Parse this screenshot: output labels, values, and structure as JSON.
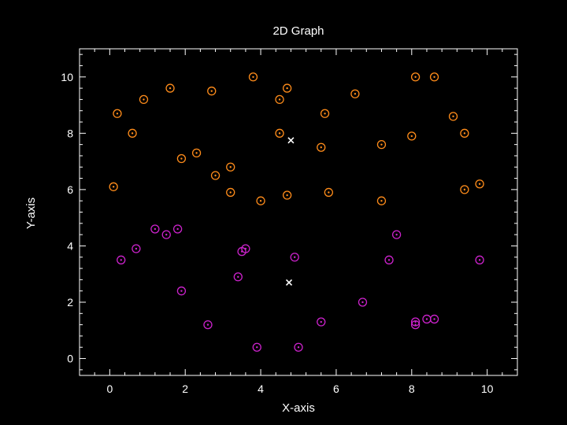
{
  "chart_data": {
    "type": "scatter",
    "title": "2D Graph",
    "xlabel": "X-axis",
    "ylabel": "Y-axis",
    "xlim": [
      -0.8,
      10.8
    ],
    "ylim": [
      -0.6,
      11.0
    ],
    "x_ticks": [
      0,
      2,
      4,
      6,
      8,
      10
    ],
    "y_ticks": [
      0,
      2,
      4,
      6,
      8,
      10
    ],
    "x_tick_labels": [
      "0",
      "2",
      "4",
      "6",
      "8",
      "10"
    ],
    "y_tick_labels": [
      "0",
      "2",
      "4",
      "6",
      "8",
      "10"
    ],
    "grid": false,
    "background": "#000000",
    "series": [
      {
        "color": "#ff8c1a",
        "marker": "circle-dot",
        "points": [
          [
            0.1,
            6.1
          ],
          [
            0.2,
            8.7
          ],
          [
            0.6,
            8.0
          ],
          [
            0.9,
            9.2
          ],
          [
            1.6,
            9.6
          ],
          [
            1.9,
            7.1
          ],
          [
            2.3,
            7.3
          ],
          [
            2.7,
            9.5
          ],
          [
            2.8,
            6.5
          ],
          [
            3.2,
            6.8
          ],
          [
            3.2,
            5.9
          ],
          [
            3.8,
            10.0
          ],
          [
            4.0,
            5.6
          ],
          [
            4.5,
            9.2
          ],
          [
            4.5,
            8.0
          ],
          [
            4.7,
            9.6
          ],
          [
            4.7,
            5.8
          ],
          [
            5.6,
            7.5
          ],
          [
            5.7,
            8.7
          ],
          [
            5.8,
            5.9
          ],
          [
            6.5,
            9.4
          ],
          [
            7.2,
            7.6
          ],
          [
            7.2,
            5.6
          ],
          [
            8.0,
            7.9
          ],
          [
            8.1,
            10.0
          ],
          [
            8.6,
            10.0
          ],
          [
            9.1,
            8.6
          ],
          [
            9.4,
            8.0
          ],
          [
            9.4,
            6.0
          ],
          [
            9.8,
            6.2
          ]
        ]
      },
      {
        "color": "#cc22cc",
        "marker": "circle-dot",
        "points": [
          [
            0.3,
            3.5
          ],
          [
            0.7,
            3.9
          ],
          [
            1.2,
            4.6
          ],
          [
            1.5,
            4.4
          ],
          [
            1.8,
            4.6
          ],
          [
            1.9,
            2.4
          ],
          [
            2.6,
            1.2
          ],
          [
            3.4,
            2.9
          ],
          [
            3.5,
            3.8
          ],
          [
            3.6,
            3.9
          ],
          [
            3.9,
            0.4
          ],
          [
            4.9,
            3.6
          ],
          [
            5.0,
            0.4
          ],
          [
            5.6,
            1.3
          ],
          [
            6.7,
            2.0
          ],
          [
            7.4,
            3.5
          ],
          [
            7.6,
            4.4
          ],
          [
            8.1,
            1.3
          ],
          [
            8.1,
            1.2
          ],
          [
            8.4,
            1.4
          ],
          [
            8.6,
            1.4
          ],
          [
            9.8,
            3.5
          ]
        ]
      },
      {
        "color": "#ffffff",
        "marker": "x",
        "points": [
          [
            4.8,
            7.75
          ],
          [
            4.75,
            2.7
          ]
        ]
      }
    ]
  }
}
